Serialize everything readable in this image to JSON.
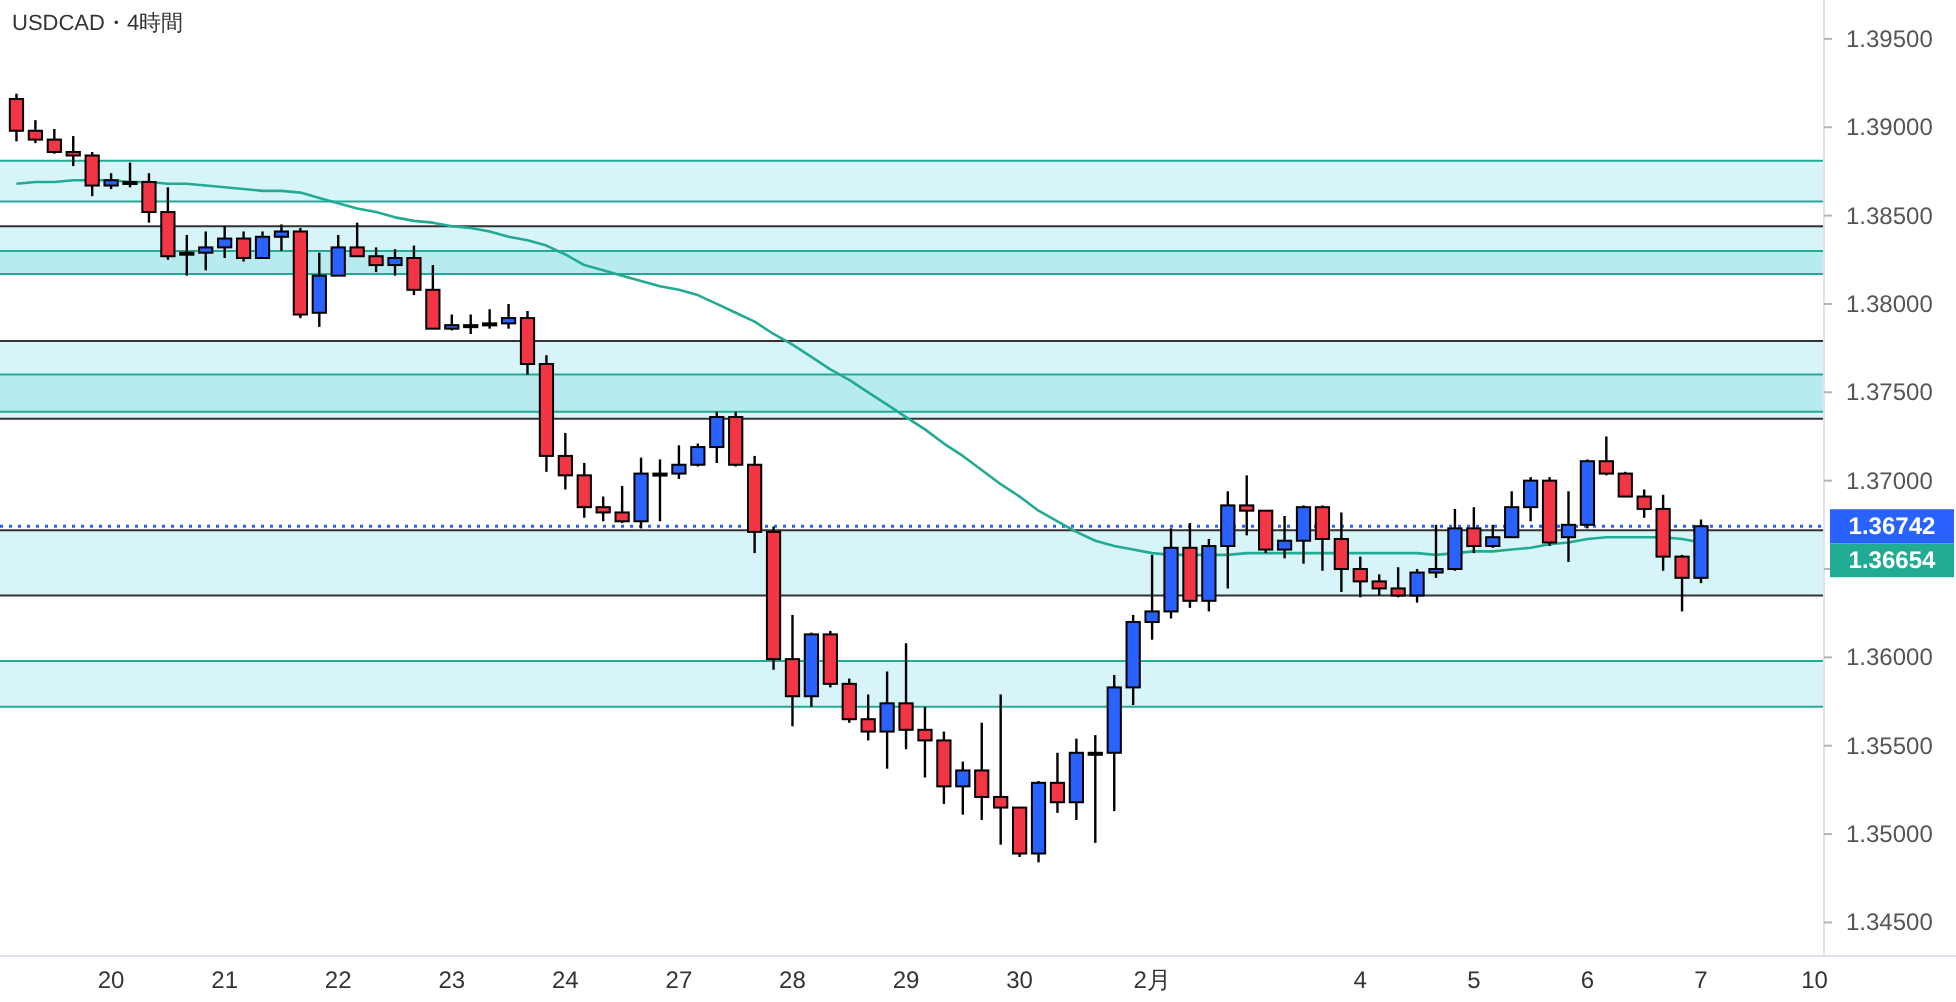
{
  "chart_data": {
    "type": "candlestick",
    "title": "USDCAD・4時間",
    "categories": [
      null,
      null,
      null,
      null,
      null,
      "20",
      null,
      null,
      null,
      null,
      null,
      "21",
      null,
      null,
      null,
      null,
      null,
      "22",
      null,
      null,
      null,
      null,
      null,
      "23",
      null,
      null,
      null,
      null,
      null,
      "24",
      null,
      null,
      null,
      null,
      null,
      "27",
      null,
      null,
      null,
      null,
      null,
      "28",
      null,
      null,
      null,
      null,
      null,
      "29",
      null,
      null,
      null,
      null,
      null,
      "30",
      null,
      null,
      null,
      null,
      null,
      null,
      "2月",
      null,
      null,
      null,
      null,
      null,
      null,
      null,
      null,
      null,
      null,
      "4",
      null,
      null,
      null,
      null,
      null,
      "5",
      null,
      null,
      null,
      null,
      null,
      "6",
      null,
      null,
      null,
      null,
      null,
      "7",
      null,
      null,
      null,
      null,
      null,
      "10"
    ],
    "ohlc": [
      [
        1.3916,
        1.3919,
        1.3892,
        1.3898
      ],
      [
        1.3898,
        1.3904,
        1.3891,
        1.3893
      ],
      [
        1.3893,
        1.3899,
        1.3885,
        1.3886
      ],
      [
        1.3886,
        1.3895,
        1.3878,
        1.3884
      ],
      [
        1.3884,
        1.3886,
        1.3861,
        1.3867
      ],
      [
        1.3867,
        1.3874,
        1.3865,
        1.387
      ],
      [
        1.3869,
        1.388,
        1.3866,
        1.3869
      ],
      [
        1.3869,
        1.3874,
        1.3846,
        1.3852
      ],
      [
        1.3852,
        1.3866,
        1.3825,
        1.3827
      ],
      [
        1.3829,
        1.3839,
        1.3816,
        1.3829
      ],
      [
        1.3829,
        1.3841,
        1.3819,
        1.3832
      ],
      [
        1.3832,
        1.3844,
        1.3826,
        1.3837
      ],
      [
        1.3837,
        1.3841,
        1.3824,
        1.3826
      ],
      [
        1.3826,
        1.3841,
        1.3826,
        1.3838
      ],
      [
        1.3838,
        1.3845,
        1.383,
        1.3841
      ],
      [
        1.3841,
        1.3843,
        1.3792,
        1.3794
      ],
      [
        1.3795,
        1.3829,
        1.3787,
        1.3816
      ],
      [
        1.3816,
        1.3839,
        1.3816,
        1.3832
      ],
      [
        1.3832,
        1.3846,
        1.3827,
        1.3827
      ],
      [
        1.3827,
        1.3832,
        1.3818,
        1.3822
      ],
      [
        1.3822,
        1.3831,
        1.3816,
        1.3826
      ],
      [
        1.3826,
        1.3833,
        1.3805,
        1.3808
      ],
      [
        1.3808,
        1.3822,
        1.3786,
        1.3786
      ],
      [
        1.3786,
        1.3794,
        1.3785,
        1.3788
      ],
      [
        1.3788,
        1.3794,
        1.3783,
        1.3788
      ],
      [
        1.3789,
        1.3797,
        1.3786,
        1.3789
      ],
      [
        1.3789,
        1.38,
        1.3786,
        1.3792
      ],
      [
        1.3792,
        1.3796,
        1.376,
        1.3766
      ],
      [
        1.3766,
        1.3771,
        1.3705,
        1.3714
      ],
      [
        1.3714,
        1.3727,
        1.3695,
        1.3703
      ],
      [
        1.3703,
        1.371,
        1.3679,
        1.3685
      ],
      [
        1.3685,
        1.3691,
        1.3677,
        1.3682
      ],
      [
        1.3682,
        1.3697,
        1.3676,
        1.3677
      ],
      [
        1.3677,
        1.3713,
        1.3673,
        1.3704
      ],
      [
        1.3704,
        1.3712,
        1.3677,
        1.3704
      ],
      [
        1.3704,
        1.372,
        1.3701,
        1.3709
      ],
      [
        1.3709,
        1.3721,
        1.3708,
        1.3719
      ],
      [
        1.3719,
        1.3739,
        1.371,
        1.3736
      ],
      [
        1.3736,
        1.3739,
        1.3708,
        1.3709
      ],
      [
        1.3709,
        1.3714,
        1.3659,
        1.3671
      ],
      [
        1.3671,
        1.3674,
        1.3593,
        1.3599
      ],
      [
        1.3599,
        1.3624,
        1.3561,
        1.3578
      ],
      [
        1.3578,
        1.3614,
        1.3572,
        1.3613
      ],
      [
        1.3613,
        1.3615,
        1.3583,
        1.3585
      ],
      [
        1.3585,
        1.3588,
        1.3563,
        1.3565
      ],
      [
        1.3565,
        1.3579,
        1.3553,
        1.3558
      ],
      [
        1.3558,
        1.3592,
        1.3537,
        1.3574
      ],
      [
        1.3574,
        1.3608,
        1.3548,
        1.3559
      ],
      [
        1.3559,
        1.3572,
        1.3532,
        1.3553
      ],
      [
        1.3553,
        1.3558,
        1.3517,
        1.3527
      ],
      [
        1.3527,
        1.3541,
        1.3511,
        1.3536
      ],
      [
        1.3536,
        1.3563,
        1.3508,
        1.3521
      ],
      [
        1.3521,
        1.3579,
        1.3494,
        1.3515
      ],
      [
        1.3515,
        1.3515,
        1.3487,
        1.3489
      ],
      [
        1.3489,
        1.353,
        1.3484,
        1.3529
      ],
      [
        1.3529,
        1.3546,
        1.3512,
        1.3518
      ],
      [
        1.3518,
        1.3554,
        1.3508,
        1.3546
      ],
      [
        1.3546,
        1.3556,
        1.3495,
        1.3546
      ],
      [
        1.3546,
        1.359,
        1.3513,
        1.3583
      ],
      [
        1.3583,
        1.3624,
        1.3573,
        1.362
      ],
      [
        1.362,
        1.3658,
        1.361,
        1.3626
      ],
      [
        1.3626,
        1.3673,
        1.3622,
        1.3662
      ],
      [
        1.3662,
        1.3676,
        1.3628,
        1.3632
      ],
      [
        1.3632,
        1.3667,
        1.3626,
        1.3663
      ],
      [
        1.3663,
        1.3694,
        1.3639,
        1.3686
      ],
      [
        1.3686,
        1.3703,
        1.3669,
        1.3683
      ],
      [
        1.3683,
        1.3683,
        1.3659,
        1.3661
      ],
      [
        1.3661,
        1.368,
        1.3656,
        1.3666
      ],
      [
        1.3666,
        1.3686,
        1.3653,
        1.3685
      ],
      [
        1.3685,
        1.3686,
        1.3649,
        1.3667
      ],
      [
        1.3667,
        1.3682,
        1.3637,
        1.365
      ],
      [
        1.365,
        1.3657,
        1.3634,
        1.3643
      ],
      [
        1.3643,
        1.3647,
        1.3635,
        1.3639
      ],
      [
        1.3639,
        1.3651,
        1.3634,
        1.3635
      ],
      [
        1.3635,
        1.365,
        1.3631,
        1.3648
      ],
      [
        1.3648,
        1.3675,
        1.3645,
        1.365
      ],
      [
        1.365,
        1.3684,
        1.3649,
        1.3673
      ],
      [
        1.3673,
        1.3685,
        1.3659,
        1.3663
      ],
      [
        1.3663,
        1.3675,
        1.3662,
        1.3668
      ],
      [
        1.3668,
        1.3694,
        1.3668,
        1.3685
      ],
      [
        1.3685,
        1.3702,
        1.3677,
        1.37
      ],
      [
        1.37,
        1.3702,
        1.3663,
        1.3665
      ],
      [
        1.3668,
        1.3694,
        1.3654,
        1.3675
      ],
      [
        1.3675,
        1.3712,
        1.3673,
        1.3711
      ],
      [
        1.3711,
        1.3725,
        1.3703,
        1.3704
      ],
      [
        1.3704,
        1.3705,
        1.3691,
        1.3691
      ],
      [
        1.3691,
        1.3695,
        1.3679,
        1.3684
      ],
      [
        1.3684,
        1.3692,
        1.3649,
        1.3657
      ],
      [
        1.3657,
        1.3658,
        1.3626,
        1.3645
      ],
      [
        1.3645,
        1.3678,
        1.3642,
        1.36742
      ],
      null,
      null,
      null,
      null,
      null,
      null
    ],
    "colors": [
      "#f23645",
      "#f23645",
      "#f23645",
      "#f23645",
      "#f23645",
      "#2962ff",
      "#2962ff",
      "#f23645",
      "#f23645",
      "#2962ff",
      "#2962ff",
      "#2962ff",
      "#f23645",
      "#2962ff",
      "#2962ff",
      "#f23645",
      "#2962ff",
      "#2962ff",
      "#f23645",
      "#f23645",
      "#2962ff",
      "#f23645",
      "#f23645",
      "#2962ff",
      "#2962ff",
      "#2962ff",
      "#2962ff",
      "#f23645",
      "#f23645",
      "#f23645",
      "#f23645",
      "#f23645",
      "#f23645",
      "#2962ff",
      "#2962ff",
      "#2962ff",
      "#2962ff",
      "#2962ff",
      "#f23645",
      "#f23645",
      "#f23645",
      "#f23645",
      "#2962ff",
      "#f23645",
      "#f23645",
      "#f23645",
      "#2962ff",
      "#f23645",
      "#f23645",
      "#f23645",
      "#2962ff",
      "#f23645",
      "#f23645",
      "#f23645",
      "#2962ff",
      "#f23645",
      "#2962ff",
      "#2962ff",
      "#2962ff",
      "#2962ff",
      "#2962ff",
      "#2962ff",
      "#f23645",
      "#2962ff",
      "#2962ff",
      "#f23645",
      "#f23645",
      "#2962ff",
      "#2962ff",
      "#f23645",
      "#f23645",
      "#f23645",
      "#f23645",
      "#f23645",
      "#2962ff",
      "#2962ff",
      "#2962ff",
      "#f23645",
      "#2962ff",
      "#2962ff",
      "#2962ff",
      "#f23645",
      "#2962ff",
      "#2962ff",
      "#f23645",
      "#f23645",
      "#f23645",
      "#f23645",
      "#f23645",
      "#2962ff",
      null,
      null,
      null,
      null,
      null,
      null
    ],
    "series": [
      {
        "type": "line",
        "color": "#22ab94",
        "values": [
          1.3868,
          1.3869,
          1.3869,
          1.387,
          1.387,
          1.387,
          1.3869,
          1.3869,
          1.3868,
          1.3868,
          1.3867,
          1.3866,
          1.3865,
          1.3864,
          1.3864,
          1.3863,
          1.386,
          1.3857,
          1.3854,
          1.3852,
          1.3849,
          1.3847,
          1.3846,
          1.3844,
          1.3843,
          1.3841,
          1.3838,
          1.3836,
          1.3833,
          1.3828,
          1.3822,
          1.3819,
          1.3816,
          1.3813,
          1.381,
          1.3808,
          1.3805,
          1.38,
          1.3795,
          1.379,
          1.3783,
          1.3777,
          1.377,
          1.3763,
          1.3757,
          1.375,
          1.3743,
          1.3736,
          1.3729,
          1.3721,
          1.3714,
          1.3706,
          1.3698,
          1.3691,
          1.3683,
          1.3677,
          1.3671,
          1.3666,
          1.3663,
          1.3661,
          1.3659,
          1.3658,
          1.3658,
          1.3658,
          1.3658,
          1.3659,
          1.3659,
          1.3659,
          1.3659,
          1.3659,
          1.3659,
          1.3659,
          1.3659,
          1.3659,
          1.3659,
          1.3658,
          1.3659,
          1.366,
          1.366,
          1.3661,
          1.3662,
          1.3664,
          1.3665,
          1.3667,
          1.3668,
          1.3668,
          1.3668,
          1.3668,
          1.3667,
          1.3665,
          null,
          null,
          null,
          null,
          null,
          null
        ]
      }
    ],
    "ylim": [
      1.3431,
      1.3972
    ],
    "yticks": [
      {
        "value": 1.345,
        "label": "1.34500"
      },
      {
        "value": 1.35,
        "label": "1.35000"
      },
      {
        "value": 1.355,
        "label": "1.35500"
      },
      {
        "value": 1.36,
        "label": "1.36000"
      },
      {
        "value": 1.365,
        "label": null
      },
      {
        "value": 1.37,
        "label": "1.37000"
      },
      {
        "value": 1.375,
        "label": "1.37500"
      },
      {
        "value": 1.38,
        "label": "1.38000"
      },
      {
        "value": 1.385,
        "label": "1.38500"
      },
      {
        "value": 1.39,
        "label": "1.39000"
      },
      {
        "value": 1.395,
        "label": "1.39500"
      }
    ],
    "bands": [
      {
        "axis": "y",
        "from": 1.3858,
        "to": 1.3881,
        "color": "#d7f5f8"
      },
      {
        "axis": "y",
        "from": 1.3817,
        "to": 1.3844,
        "color": "#d7f5f8"
      },
      {
        "axis": "y",
        "from": 1.3817,
        "to": 1.383,
        "color": "#b8ebf0"
      },
      {
        "axis": "y",
        "from": 1.3735,
        "to": 1.3779,
        "color": "#d7f5f8"
      },
      {
        "axis": "y",
        "from": 1.3739,
        "to": 1.376,
        "color": "#b8ebf0"
      },
      {
        "axis": "y",
        "from": 1.3635,
        "to": 1.3672,
        "color": "#d7f5f8"
      },
      {
        "axis": "y",
        "from": 1.3572,
        "to": 1.3598,
        "color": "#d7f5f8"
      }
    ],
    "ref_lines": [
      {
        "axis": "y",
        "value": 1.3881,
        "color": "#22ab94"
      },
      {
        "axis": "y",
        "value": 1.3858,
        "color": "#22ab94"
      },
      {
        "axis": "y",
        "value": 1.3844,
        "color": "#333333"
      },
      {
        "axis": "y",
        "value": 1.383,
        "color": "#22ab94"
      },
      {
        "axis": "y",
        "value": 1.3817,
        "color": "#22ab94"
      },
      {
        "axis": "y",
        "value": 1.3779,
        "color": "#333333"
      },
      {
        "axis": "y",
        "value": 1.376,
        "color": "#22ab94"
      },
      {
        "axis": "y",
        "value": 1.3739,
        "color": "#22ab94"
      },
      {
        "axis": "y",
        "value": 1.3735,
        "color": "#333333"
      },
      {
        "axis": "y",
        "value": 1.3672,
        "color": "#333333"
      },
      {
        "axis": "y",
        "value": 1.3635,
        "color": "#333333"
      },
      {
        "axis": "y",
        "value": 1.3598,
        "color": "#22ab94"
      },
      {
        "axis": "y",
        "value": 1.3572,
        "color": "#22ab94"
      },
      {
        "axis": "y",
        "value": 1.36742,
        "label": "1.36742",
        "color": "#2962ff",
        "line_style": "dotted"
      }
    ],
    "annotations": [
      "1.36654"
    ],
    "grid": false
  }
}
